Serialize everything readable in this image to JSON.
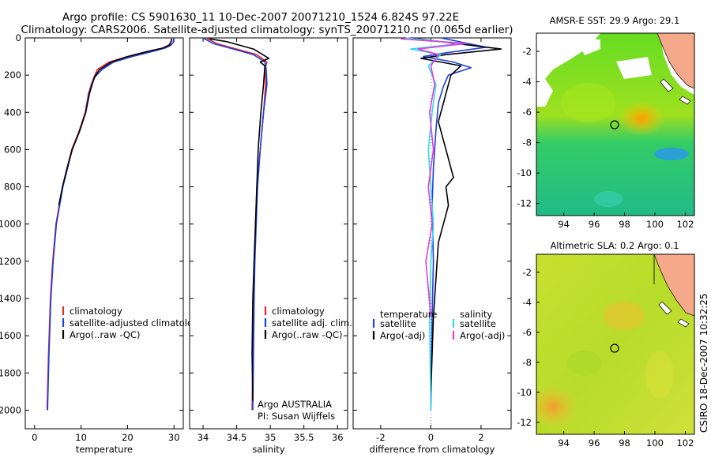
{
  "header": {
    "line1": "Argo profile: CS 5901630_11 10-Dec-2007 20071210_1524 6.824S 97.22E",
    "line2": "Climatology: CARS2006. Satellite-adjusted climatology: synTS_20071210.nc (0.065d earlier)"
  },
  "side_label": "CSIRO 18-Dec-2007 10:32:25",
  "colors": {
    "red": "#e8262c",
    "blue": "#1a3fe0",
    "black": "#000000",
    "cyan": "#2fd8e8",
    "magenta": "#e83ad8"
  },
  "chart_data": [
    {
      "type": "line",
      "xlabel": "temperature",
      "xlim": [
        -2,
        32
      ],
      "ylim": [
        2100,
        0
      ],
      "xticks": [
        0,
        10,
        20,
        30
      ],
      "yticks": [
        0,
        200,
        400,
        600,
        800,
        1000,
        1200,
        1400,
        1600,
        1800,
        2000
      ],
      "legend_pos": "lower-left",
      "legend": [
        "climatology",
        "satellite-adjusted climatology",
        "Argo(..raw -QC)"
      ],
      "series": [
        {
          "name": "climatology",
          "color": "red",
          "x": [
            29.6,
            29.3,
            28.8,
            27.5,
            24,
            20,
            16,
            13.5,
            12.8,
            12.2,
            11.6,
            10.9,
            9.6,
            8.0,
            7.0,
            6.0,
            5.3,
            4.6,
            3.9,
            3.4,
            3.0,
            2.7
          ],
          "y": [
            0,
            25,
            40,
            55,
            75,
            100,
            130,
            170,
            210,
            250,
            300,
            400,
            500,
            600,
            700,
            800,
            900,
            1000,
            1200,
            1400,
            1700,
            2000
          ]
        },
        {
          "name": "satellite-adjusted climatology",
          "color": "blue",
          "x": [
            30.0,
            29.8,
            29.3,
            28,
            25,
            21,
            17,
            14.5,
            13.0,
            12.3,
            11.7,
            11.0,
            9.7,
            8.1,
            7.1,
            6.1,
            5.4,
            4.7,
            4.0,
            3.5,
            3.1,
            2.8
          ],
          "y": [
            0,
            25,
            40,
            55,
            75,
            100,
            130,
            170,
            210,
            250,
            300,
            400,
            500,
            600,
            700,
            800,
            900,
            1000,
            1200,
            1400,
            1700,
            2000
          ]
        },
        {
          "name": "Argo(..raw -QC)",
          "color": "black",
          "x": [
            29.5,
            29.3,
            29.0,
            27.5,
            24,
            20,
            16.5,
            14,
            12.9,
            12.4,
            11.8,
            11.0,
            9.7,
            8.1,
            7.0,
            6.0,
            5.2
          ],
          "y": [
            5,
            25,
            40,
            55,
            75,
            100,
            130,
            170,
            210,
            250,
            300,
            400,
            500,
            600,
            700,
            800,
            900
          ]
        }
      ]
    },
    {
      "type": "line",
      "xlabel": "salinity",
      "xlim": [
        33.8,
        36.15
      ],
      "ylim": [
        2100,
        0
      ],
      "xticks": [
        34,
        34.5,
        35,
        35.5,
        36
      ],
      "legend_pos": "lower-left",
      "legend": [
        "climatology",
        "satellite adj. clim.",
        "Argo(..raw -QC)"
      ],
      "annotation": [
        "Argo AUSTRALIA",
        "PI: Susan Wijffels"
      ],
      "series": [
        {
          "name": "climatology",
          "color": "red",
          "x": [
            34.05,
            34.2,
            34.5,
            34.8,
            34.95,
            34.92,
            34.93,
            34.9,
            34.85,
            34.8,
            34.78,
            34.76,
            34.75,
            34.74,
            34.73
          ],
          "y": [
            0,
            30,
            60,
            90,
            130,
            170,
            250,
            400,
            600,
            800,
            1000,
            1200,
            1400,
            1700,
            2000
          ]
        },
        {
          "name": "satellite adj. clim.",
          "color": "blue",
          "x": [
            34.0,
            34.15,
            34.45,
            34.75,
            34.92,
            34.94,
            34.95,
            34.9,
            34.85,
            34.81,
            34.79,
            34.77,
            34.76,
            34.75,
            34.74
          ],
          "y": [
            0,
            30,
            60,
            90,
            130,
            170,
            250,
            400,
            600,
            800,
            1000,
            1200,
            1400,
            1700,
            2000
          ]
        },
        {
          "name": "Argo(..raw -QC)",
          "color": "black",
          "x": [
            34.1,
            34.35,
            34.55,
            34.75,
            34.98,
            34.85,
            34.92,
            34.9,
            34.86,
            34.82,
            34.8,
            34.78,
            34.76,
            34.74,
            34.73,
            34.74
          ],
          "y": [
            5,
            20,
            40,
            60,
            110,
            130,
            150,
            250,
            400,
            600,
            800,
            1000,
            1200,
            1400,
            1700,
            1950
          ]
        }
      ]
    },
    {
      "type": "line",
      "xlabel": "difference from climatology",
      "xlim": [
        -3.1,
        3.2
      ],
      "ylim": [
        2100,
        0
      ],
      "xticks": [
        -2,
        0,
        2
      ],
      "legend_pos": "lower-center",
      "legend_headers": [
        "temperature",
        "salinity"
      ],
      "legend": [
        "satellite",
        "Argo(-adj)",
        "satellite",
        "Argo(-adj)"
      ],
      "series": [
        {
          "name": "satellite",
          "group": "temperature",
          "color": "blue",
          "x": [
            0.4,
            2.2,
            0.6,
            -0.3,
            0.9,
            1.6,
            0.7,
            0.5,
            0.3,
            0.2,
            0.1,
            0.05,
            0.1,
            0.05,
            0.0
          ],
          "y": [
            0,
            50,
            80,
            100,
            130,
            160,
            200,
            260,
            350,
            500,
            700,
            900,
            1200,
            1500,
            2000
          ]
        },
        {
          "name": "Argo(-adj)",
          "group": "temperature",
          "color": "black",
          "x": [
            -0.5,
            2.8,
            0.6,
            -0.4,
            1.2,
            0.8,
            0.7,
            0.5,
            0.3,
            0.6,
            0.9,
            0.6,
            0.7,
            0.3,
            0.1,
            0.0
          ],
          "y": [
            5,
            60,
            90,
            110,
            150,
            200,
            250,
            350,
            450,
            600,
            750,
            800,
            900,
            1100,
            1500,
            1900
          ]
        },
        {
          "name": "satellite",
          "group": "salinity",
          "color": "cyan",
          "x": [
            -1.0,
            1.2,
            -0.8,
            0.4,
            -0.1,
            0.2,
            0.05,
            -0.1,
            0.0,
            0.1,
            0.0,
            -0.05,
            0.0
          ],
          "y": [
            0,
            30,
            60,
            90,
            150,
            250,
            400,
            600,
            800,
            1000,
            1200,
            1500,
            2000
          ]
        },
        {
          "name": "Argo(-adj)",
          "group": "salinity",
          "color": "magenta",
          "x": [
            -1.2,
            1.4,
            -0.5,
            0.3,
            0.0,
            0.15,
            -0.05,
            0.1,
            -0.1,
            0.05,
            -0.2,
            0.0
          ],
          "y": [
            5,
            30,
            60,
            90,
            150,
            250,
            400,
            600,
            800,
            1000,
            1200,
            1500
          ]
        }
      ]
    },
    {
      "type": "heatmap",
      "title": "AMSR-E SST: 29.9 Argo: 29.1",
      "xticks": [
        94,
        96,
        98,
        100,
        102
      ],
      "yticks": [
        -2,
        -4,
        -6,
        -8,
        -10,
        -12
      ],
      "xlim": [
        92.2,
        102.6
      ],
      "ylim": [
        -12.8,
        -0.8
      ],
      "marker": {
        "lon": 97.22,
        "lat": -6.824
      }
    },
    {
      "type": "heatmap",
      "title": "Altimetric SLA: 0.2 Argo: 0.1",
      "xticks": [
        94,
        96,
        98,
        100,
        102
      ],
      "yticks": [
        -2,
        -4,
        -6,
        -8,
        -10,
        -12
      ],
      "xlim": [
        92.2,
        102.6
      ],
      "ylim": [
        -12.8,
        -0.8
      ],
      "marker": {
        "lon": 97.22,
        "lat": -6.824
      }
    }
  ]
}
